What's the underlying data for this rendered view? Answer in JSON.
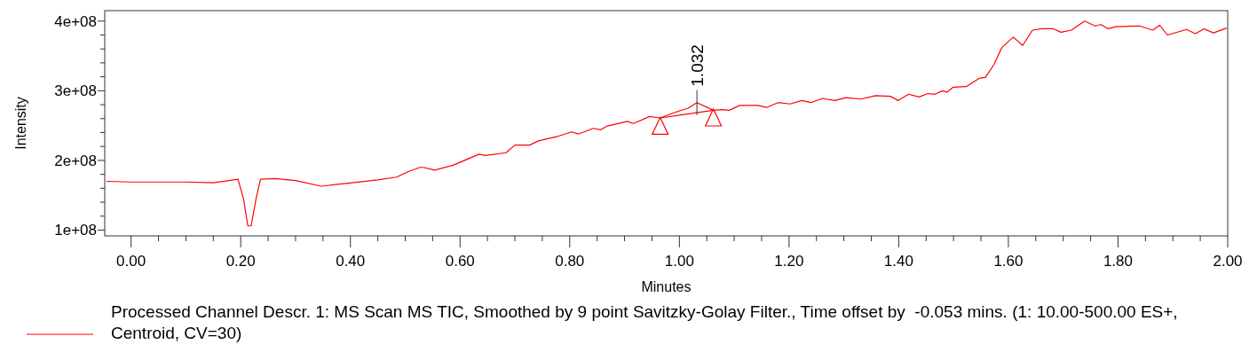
{
  "chart_data": {
    "type": "line",
    "xlabel": "Minutes",
    "ylabel": "Intensity",
    "xlim": [
      -0.048,
      2.0
    ],
    "ylim": [
      91700000.0,
      415000000.0
    ],
    "xticks": [
      {
        "value": 0,
        "label": "0.00"
      },
      {
        "value": 0.05,
        "label": null
      },
      {
        "value": 0.1,
        "label": null
      },
      {
        "value": 0.15,
        "label": null
      },
      {
        "value": 0.2,
        "label": "0.20"
      },
      {
        "value": 0.25,
        "label": null
      },
      {
        "value": 0.3,
        "label": null
      },
      {
        "value": 0.35,
        "label": null
      },
      {
        "value": 0.4,
        "label": "0.40"
      },
      {
        "value": 0.45,
        "label": null
      },
      {
        "value": 0.5,
        "label": null
      },
      {
        "value": 0.55,
        "label": null
      },
      {
        "value": 0.6,
        "label": "0.60"
      },
      {
        "value": 0.65,
        "label": null
      },
      {
        "value": 0.7,
        "label": null
      },
      {
        "value": 0.75,
        "label": null
      },
      {
        "value": 0.8,
        "label": "0.80"
      },
      {
        "value": 0.85,
        "label": null
      },
      {
        "value": 0.9,
        "label": null
      },
      {
        "value": 0.95,
        "label": null
      },
      {
        "value": 1.0,
        "label": "1.00"
      },
      {
        "value": 1.05,
        "label": null
      },
      {
        "value": 1.1,
        "label": null
      },
      {
        "value": 1.15,
        "label": null
      },
      {
        "value": 1.2,
        "label": "1.20"
      },
      {
        "value": 1.25,
        "label": null
      },
      {
        "value": 1.3,
        "label": null
      },
      {
        "value": 1.35,
        "label": null
      },
      {
        "value": 1.4,
        "label": "1.40"
      },
      {
        "value": 1.45,
        "label": null
      },
      {
        "value": 1.5,
        "label": null
      },
      {
        "value": 1.55,
        "label": null
      },
      {
        "value": 1.6,
        "label": "1.60"
      },
      {
        "value": 1.65,
        "label": null
      },
      {
        "value": 1.7,
        "label": null
      },
      {
        "value": 1.75,
        "label": null
      },
      {
        "value": 1.8,
        "label": "1.80"
      },
      {
        "value": 1.85,
        "label": null
      },
      {
        "value": 1.9,
        "label": null
      },
      {
        "value": 1.95,
        "label": null
      },
      {
        "value": 2.0,
        "label": "2.00"
      }
    ],
    "yticks": [
      {
        "value": 100000000.0,
        "label": "1e+08"
      },
      {
        "value": 120000000.0,
        "label": null
      },
      {
        "value": 140000000.0,
        "label": null
      },
      {
        "value": 160000000.0,
        "label": null
      },
      {
        "value": 180000000.0,
        "label": null
      },
      {
        "value": 200000000.0,
        "label": "2e+08"
      },
      {
        "value": 220000000.0,
        "label": null
      },
      {
        "value": 240000000.0,
        "label": null
      },
      {
        "value": 260000000.0,
        "label": null
      },
      {
        "value": 280000000.0,
        "label": null
      },
      {
        "value": 300000000.0,
        "label": "3e+08"
      },
      {
        "value": 320000000.0,
        "label": null
      },
      {
        "value": 340000000.0,
        "label": null
      },
      {
        "value": 360000000.0,
        "label": null
      },
      {
        "value": 380000000.0,
        "label": null
      },
      {
        "value": 400000000.0,
        "label": "4e+08"
      }
    ],
    "grid": false,
    "legend": "bottom",
    "marker": "none",
    "line_style": "solid",
    "annotations": [
      {
        "text": "1.032",
        "x": 1.032,
        "y": 283000000.0
      }
    ],
    "series": [
      {
        "name": "Processed Channel Descr. 1: MS Scan MS TIC, Smoothed by 9 point Savitzky-Golay Filter., Time offset by  -0.053 mins. (1: 10.00-500.00 ES+, Centroid, CV=30)",
        "color": "#ff0000",
        "x": [
          -0.045,
          0.0,
          0.05,
          0.1,
          0.15,
          0.195,
          0.205,
          0.213,
          0.219,
          0.228,
          0.236,
          0.263,
          0.3,
          0.347,
          0.38,
          0.403,
          0.45,
          0.484,
          0.506,
          0.527,
          0.533,
          0.554,
          0.587,
          0.635,
          0.646,
          0.684,
          0.7,
          0.727,
          0.743,
          0.776,
          0.803,
          0.816,
          0.843,
          0.857,
          0.867,
          0.905,
          0.916,
          0.946,
          0.965,
          0.992,
          1.016,
          1.032,
          1.062,
          1.078,
          1.091,
          1.11,
          1.143,
          1.159,
          1.18,
          1.202,
          1.223,
          1.24,
          1.261,
          1.283,
          1.304,
          1.331,
          1.358,
          1.385,
          1.399,
          1.418,
          1.437,
          1.453,
          1.466,
          1.48,
          1.488,
          1.499,
          1.523,
          1.547,
          1.558,
          1.574,
          1.588,
          1.609,
          1.626,
          1.644,
          1.661,
          1.682,
          1.696,
          1.715,
          1.739,
          1.758,
          1.769,
          1.782,
          1.796,
          1.839,
          1.863,
          1.876,
          1.89,
          1.925,
          1.941,
          1.957,
          1.974,
          1.998
        ],
        "values": [
          170000000.0,
          169000000.0,
          169000000.0,
          169000000.0,
          168000000.0,
          173000000.0,
          145000000.0,
          106000000.0,
          106000000.0,
          145000000.0,
          173000000.0,
          174000000.0,
          171000000.0,
          163000000.0,
          166000000.0,
          168000000.0,
          172000000.0,
          176000000.0,
          184000000.0,
          190000000.0,
          190000000.0,
          186000000.0,
          193000000.0,
          209000000.0,
          207000000.0,
          211000000.0,
          222000000.0,
          222000000.0,
          228000000.0,
          234000000.0,
          241000000.0,
          238000000.0,
          246000000.0,
          244000000.0,
          249000000.0,
          256000000.0,
          253000000.0,
          263000000.0,
          261000000.0,
          269000000.0,
          275000000.0,
          283000000.0,
          272000000.0,
          273000000.0,
          272000000.0,
          279000000.0,
          279000000.0,
          276000000.0,
          283000000.0,
          281000000.0,
          286000000.0,
          283000000.0,
          289000000.0,
          286000000.0,
          290000000.0,
          288000000.0,
          293000000.0,
          292000000.0,
          286000000.0,
          295000000.0,
          291000000.0,
          296000000.0,
          295000000.0,
          300000000.0,
          298000000.0,
          305000000.0,
          306000000.0,
          318000000.0,
          319000000.0,
          338000000.0,
          362000000.0,
          377000000.0,
          365000000.0,
          387000000.0,
          389000000.0,
          389000000.0,
          384000000.0,
          387000000.0,
          400000000.0,
          393000000.0,
          395000000.0,
          389000000.0,
          392000000.0,
          393000000.0,
          387000000.0,
          394000000.0,
          380000000.0,
          388000000.0,
          382000000.0,
          389000000.0,
          383000000.0,
          390000000.0
        ]
      },
      {
        "color": "#ff0000",
        "marker": "none",
        "x": [
          0.965,
          1.062
        ],
        "values": [
          261000000.0,
          272000000.0
        ]
      },
      {
        "type": "scatter",
        "color": "#ff0000",
        "marker": "triangle",
        "x": [
          0.965,
          1.062
        ],
        "values": [
          249000000.0,
          261000000.0
        ]
      }
    ]
  }
}
